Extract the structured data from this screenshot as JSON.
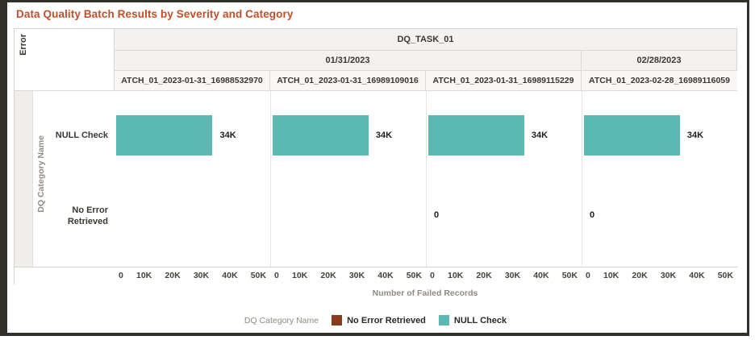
{
  "title": "Data Quality Batch Results by Severity and Category",
  "header": {
    "task": "DQ_TASK_01",
    "date_groups": [
      {
        "label": "01/31/2023",
        "panel_span": 3
      },
      {
        "label": "02/28/2023",
        "panel_span": 1
      }
    ]
  },
  "row_axis": {
    "severity": "Error",
    "axis_title": "DQ Category Name",
    "categories": [
      "NULL Check",
      "No Error Retrieved"
    ]
  },
  "axis": {
    "ticks": [
      "0",
      "10K",
      "20K",
      "30K",
      "40K",
      "50K"
    ],
    "title": "Number of Failed Records"
  },
  "legend": {
    "title": "DQ Category Name",
    "items": [
      {
        "label": "No Error Retrieved",
        "color": "#8A3A1D"
      },
      {
        "label": "NULL Check",
        "color": "#5CB8B2"
      }
    ]
  },
  "chart_data": {
    "type": "bar",
    "orientation": "horizontal",
    "title": "Data Quality Batch Results by Severity and Category",
    "xlabel": "Number of Failed Records",
    "xlim": [
      0,
      50000
    ],
    "xticks": [
      "0",
      "10K",
      "20K",
      "30K",
      "40K",
      "50K"
    ],
    "row_categories": [
      "NULL Check",
      "No Error Retrieved"
    ],
    "severity_group": "Error",
    "legend_position": "bottom",
    "series_colors": {
      "NULL Check": "#5CB8B2",
      "No Error Retrieved": "#8A3A1D"
    },
    "facets": [
      {
        "task": "DQ_TASK_01",
        "date": "01/31/2023",
        "batch": "ATCH_01_2023-01-31_16988532970",
        "series": {
          "NULL Check": 34000
        },
        "labels": {
          "NULL Check": "34K"
        }
      },
      {
        "task": "DQ_TASK_01",
        "date": "01/31/2023",
        "batch": "ATCH_01_2023-01-31_16989109016",
        "series": {
          "NULL Check": 34000
        },
        "labels": {
          "NULL Check": "34K"
        }
      },
      {
        "task": "DQ_TASK_01",
        "date": "01/31/2023",
        "batch": "ATCH_01_2023-01-31_16989115229",
        "series": {
          "NULL Check": 34000,
          "No Error Retrieved": 0
        },
        "labels": {
          "NULL Check": "34K",
          "No Error Retrieved": "0"
        }
      },
      {
        "task": "DQ_TASK_01",
        "date": "02/28/2023",
        "batch": "ATCH_01_2023-02-28_16989116059",
        "series": {
          "NULL Check": 34000,
          "No Error Retrieved": 0
        },
        "labels": {
          "NULL Check": "34K",
          "No Error Retrieved": "0"
        }
      }
    ]
  },
  "colors": {
    "title_text": "#C04F2B",
    "bar_teal": "#5CB8B2",
    "maroon": "#8A3A1D",
    "header_bg": "#F3F2F0",
    "severity_band_bg": "#F0EEEB",
    "table_border": "#D7D4D0",
    "window_frame": "#33302C"
  }
}
